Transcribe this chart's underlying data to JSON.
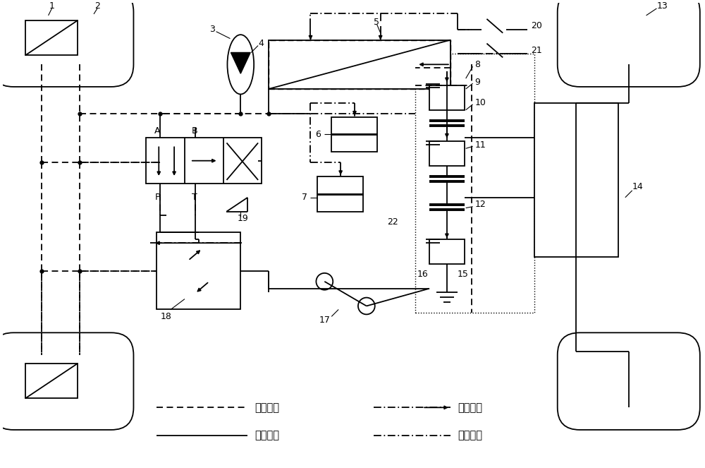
{
  "bg": "#ffffff",
  "lc": "#000000",
  "lw": 1.3,
  "legend_hydraulic": "液压连接",
  "legend_mechanical": "机械连接",
  "legend_electrical": "电气连接",
  "legend_signal": "信号连接"
}
